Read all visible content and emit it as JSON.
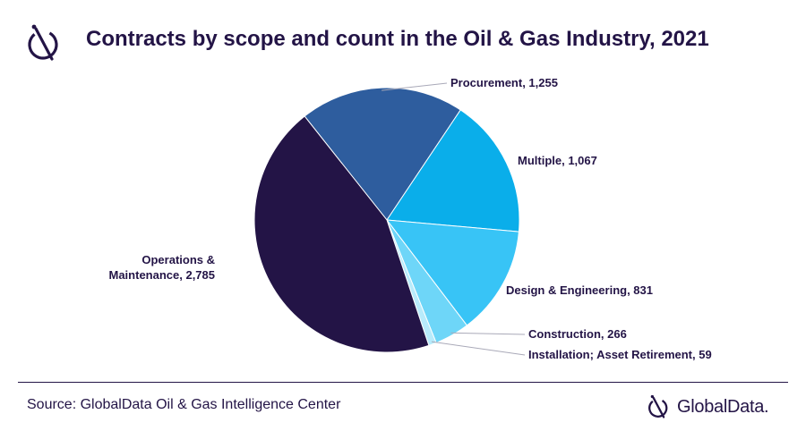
{
  "header": {
    "title": "Contracts by scope and count in the Oil & Gas Industry, 2021",
    "logo_icon": "globaldata-mark-icon"
  },
  "chart_data": {
    "type": "pie",
    "title": "Contracts by scope and count in the Oil & Gas Industry, 2021",
    "slices": [
      {
        "label": "Operations & Maintenance",
        "value": 2785,
        "display": "Operations &\nMaintenance, 2,785",
        "color": "#231446"
      },
      {
        "label": "Procurement",
        "value": 1255,
        "display": "Procurement, 1,255",
        "color": "#2e5d9e"
      },
      {
        "label": "Multiple",
        "value": 1067,
        "display": "Multiple, 1,067",
        "color": "#0aaeea"
      },
      {
        "label": "Design & Engineering",
        "value": 831,
        "display": "Design & Engineering, 831",
        "color": "#38c4f6"
      },
      {
        "label": "Construction",
        "value": 266,
        "display": "Construction, 266",
        "color": "#6ed6f8"
      },
      {
        "label": "Installation; Asset Retirement",
        "value": 59,
        "display": "Installation; Asset Retirement, 59",
        "color": "#b8ebfb"
      }
    ]
  },
  "footer": {
    "source": "Source: GlobalData Oil & Gas Intelligence Center",
    "brand": "GlobalData.",
    "brand_icon": "globaldata-mark-icon"
  }
}
